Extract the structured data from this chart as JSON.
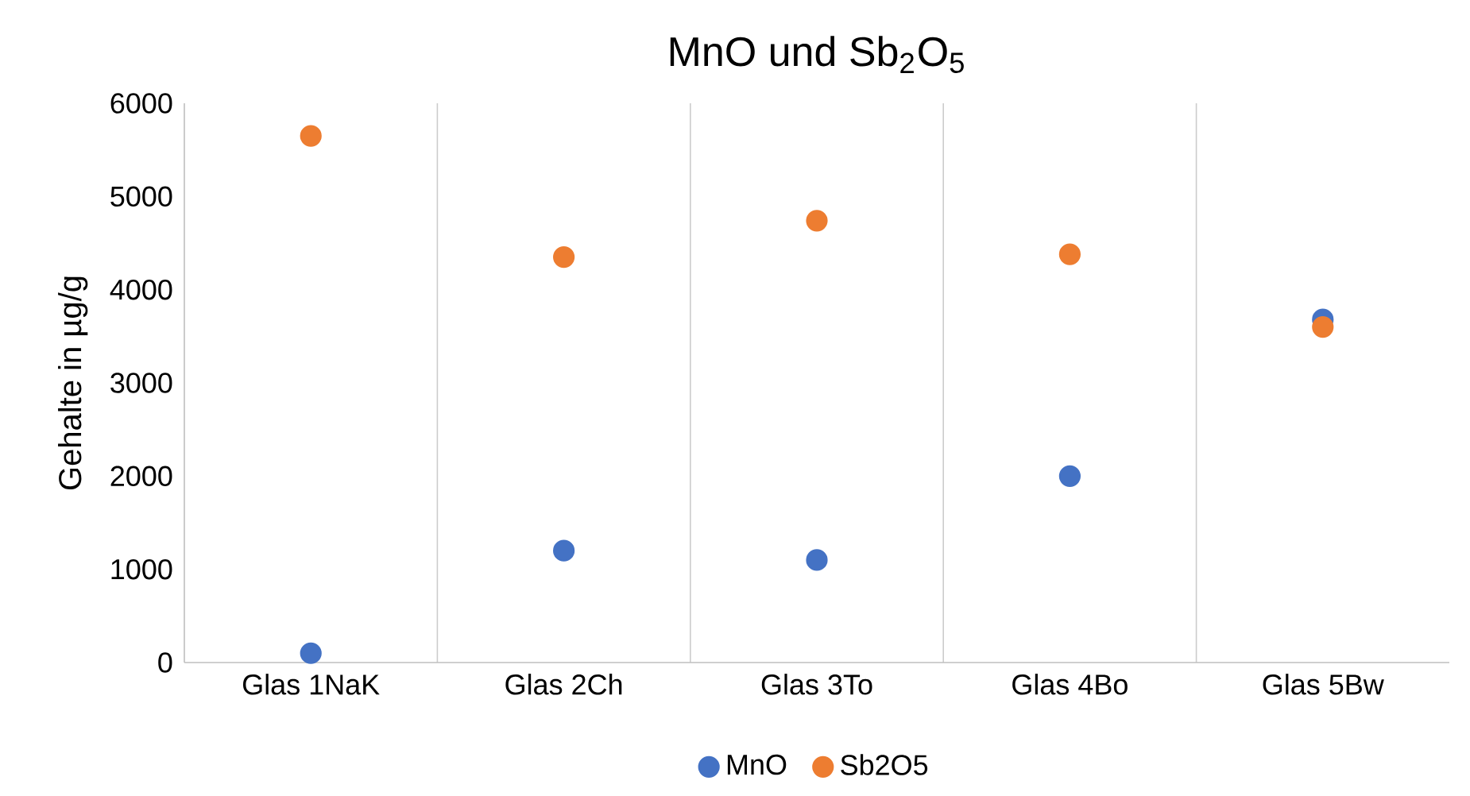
{
  "chart_data": {
    "type": "scatter",
    "title": "MnO und Sb$_{2}$O$_{5}$",
    "ylabel": "Gehalte in µg/g",
    "categories": [
      "Glas 1NaK",
      "Glas 2Ch",
      "Glas 3To",
      "Glas 4Bo",
      "Glas 5Bw"
    ],
    "series": [
      {
        "name": "MnO",
        "color": "#4472c4",
        "values": [
          100,
          1200,
          1100,
          2000,
          3680
        ]
      },
      {
        "name": "Sb2O5",
        "color": "#ed7d31",
        "values": [
          5650,
          4350,
          4740,
          4380,
          3600
        ]
      }
    ],
    "ylim": [
      0,
      6000
    ],
    "yticks": [
      0,
      1000,
      2000,
      3000,
      4000,
      5000,
      6000
    ],
    "grid": "x",
    "legend": "bottom",
    "marker": "circle"
  }
}
